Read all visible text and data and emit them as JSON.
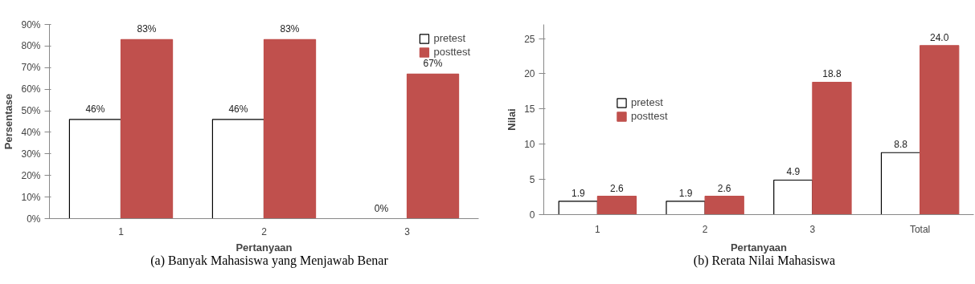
{
  "chart_data": [
    {
      "type": "bar",
      "xlabel": "Pertanyaan",
      "ylabel": "Persentase",
      "categories": [
        "1",
        "2",
        "3"
      ],
      "series": [
        {
          "name": "pretest",
          "color": "#ffffff",
          "values": [
            46,
            46,
            0
          ],
          "value_labels": [
            "46%",
            "46%",
            "0%"
          ]
        },
        {
          "name": "posttest",
          "color": "#c0504d",
          "values": [
            83,
            83,
            67
          ],
          "value_labels": [
            "83%",
            "83%",
            "67%"
          ]
        }
      ],
      "ylim": [
        0,
        90
      ],
      "yticks": [
        {
          "value": 0,
          "label": "0%"
        },
        {
          "value": 10,
          "label": "10%"
        },
        {
          "value": 20,
          "label": "20%"
        },
        {
          "value": 30,
          "label": "30%"
        },
        {
          "value": 40,
          "label": "40%"
        },
        {
          "value": 50,
          "label": "50%"
        },
        {
          "value": 60,
          "label": "60%"
        },
        {
          "value": 70,
          "label": "70%"
        },
        {
          "value": 80,
          "label": "80%"
        },
        {
          "value": 90,
          "label": "90%"
        }
      ],
      "grid": false,
      "legend": "top right",
      "annotations": [
        "(a) Banyak Mahasiswa yang Menjawab Benar"
      ]
    },
    {
      "type": "bar",
      "xlabel": "Pertanyaan",
      "ylabel": "Nilai",
      "categories": [
        "1",
        "2",
        "3",
        "Total"
      ],
      "series": [
        {
          "name": "pretest",
          "color": "#ffffff",
          "values": [
            1.9,
            1.9,
            4.9,
            8.8
          ],
          "value_labels": [
            "1.9",
            "1.9",
            "4.9",
            "8.8"
          ]
        },
        {
          "name": "posttest",
          "color": "#c0504d",
          "values": [
            2.6,
            2.6,
            18.8,
            24.0
          ],
          "value_labels": [
            "2.6",
            "2.6",
            "18.8",
            "24.0"
          ]
        }
      ],
      "ylim": [
        0,
        27
      ],
      "yticks": [
        0,
        5,
        10,
        15,
        20,
        25
      ],
      "grid": false,
      "legend": "top left",
      "annotations": [
        "(b) Rerata Nilai Mahasiswa"
      ]
    }
  ]
}
